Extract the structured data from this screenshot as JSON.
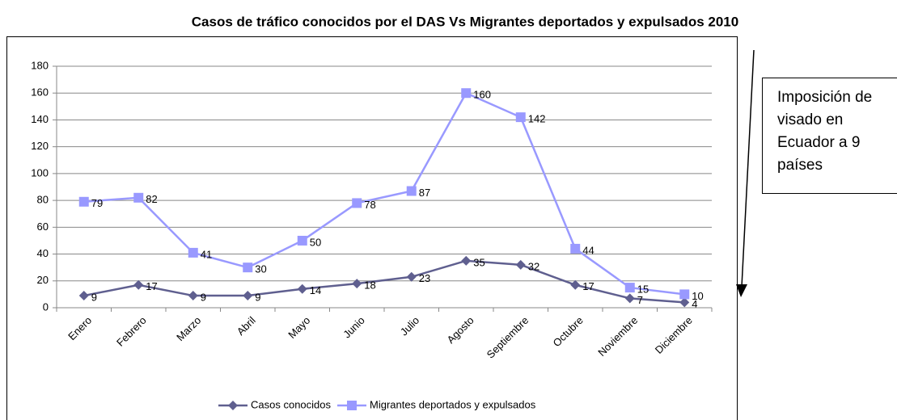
{
  "chart_data": {
    "type": "line",
    "title": "Casos de tráfico conocidos por el DAS Vs Migrantes deportados y expulsados 2010",
    "categories": [
      "Enero",
      "Febrero",
      "Marzo",
      "Abril",
      "Mayo",
      "Junio",
      "Julio",
      "Agosto",
      "Septiembre",
      "Octubre",
      "Noviembre",
      "Diciembre"
    ],
    "series": [
      {
        "name": "Casos conocidos",
        "color": "#5f5f8f",
        "values": [
          9,
          17,
          9,
          9,
          14,
          18,
          23,
          35,
          32,
          17,
          7,
          4
        ]
      },
      {
        "name": "Migrantes deportados y expulsados",
        "color": "#9999ff",
        "values": [
          79,
          82,
          41,
          30,
          50,
          78,
          87,
          160,
          142,
          44,
          15,
          10
        ]
      }
    ],
    "ylim": [
      0,
      180
    ],
    "yticks": [
      0,
      20,
      40,
      60,
      80,
      100,
      120,
      140,
      160,
      180
    ],
    "grid": true,
    "legend": "bottom",
    "annotation": "Imposición de visado en Ecuador a 9 países"
  }
}
